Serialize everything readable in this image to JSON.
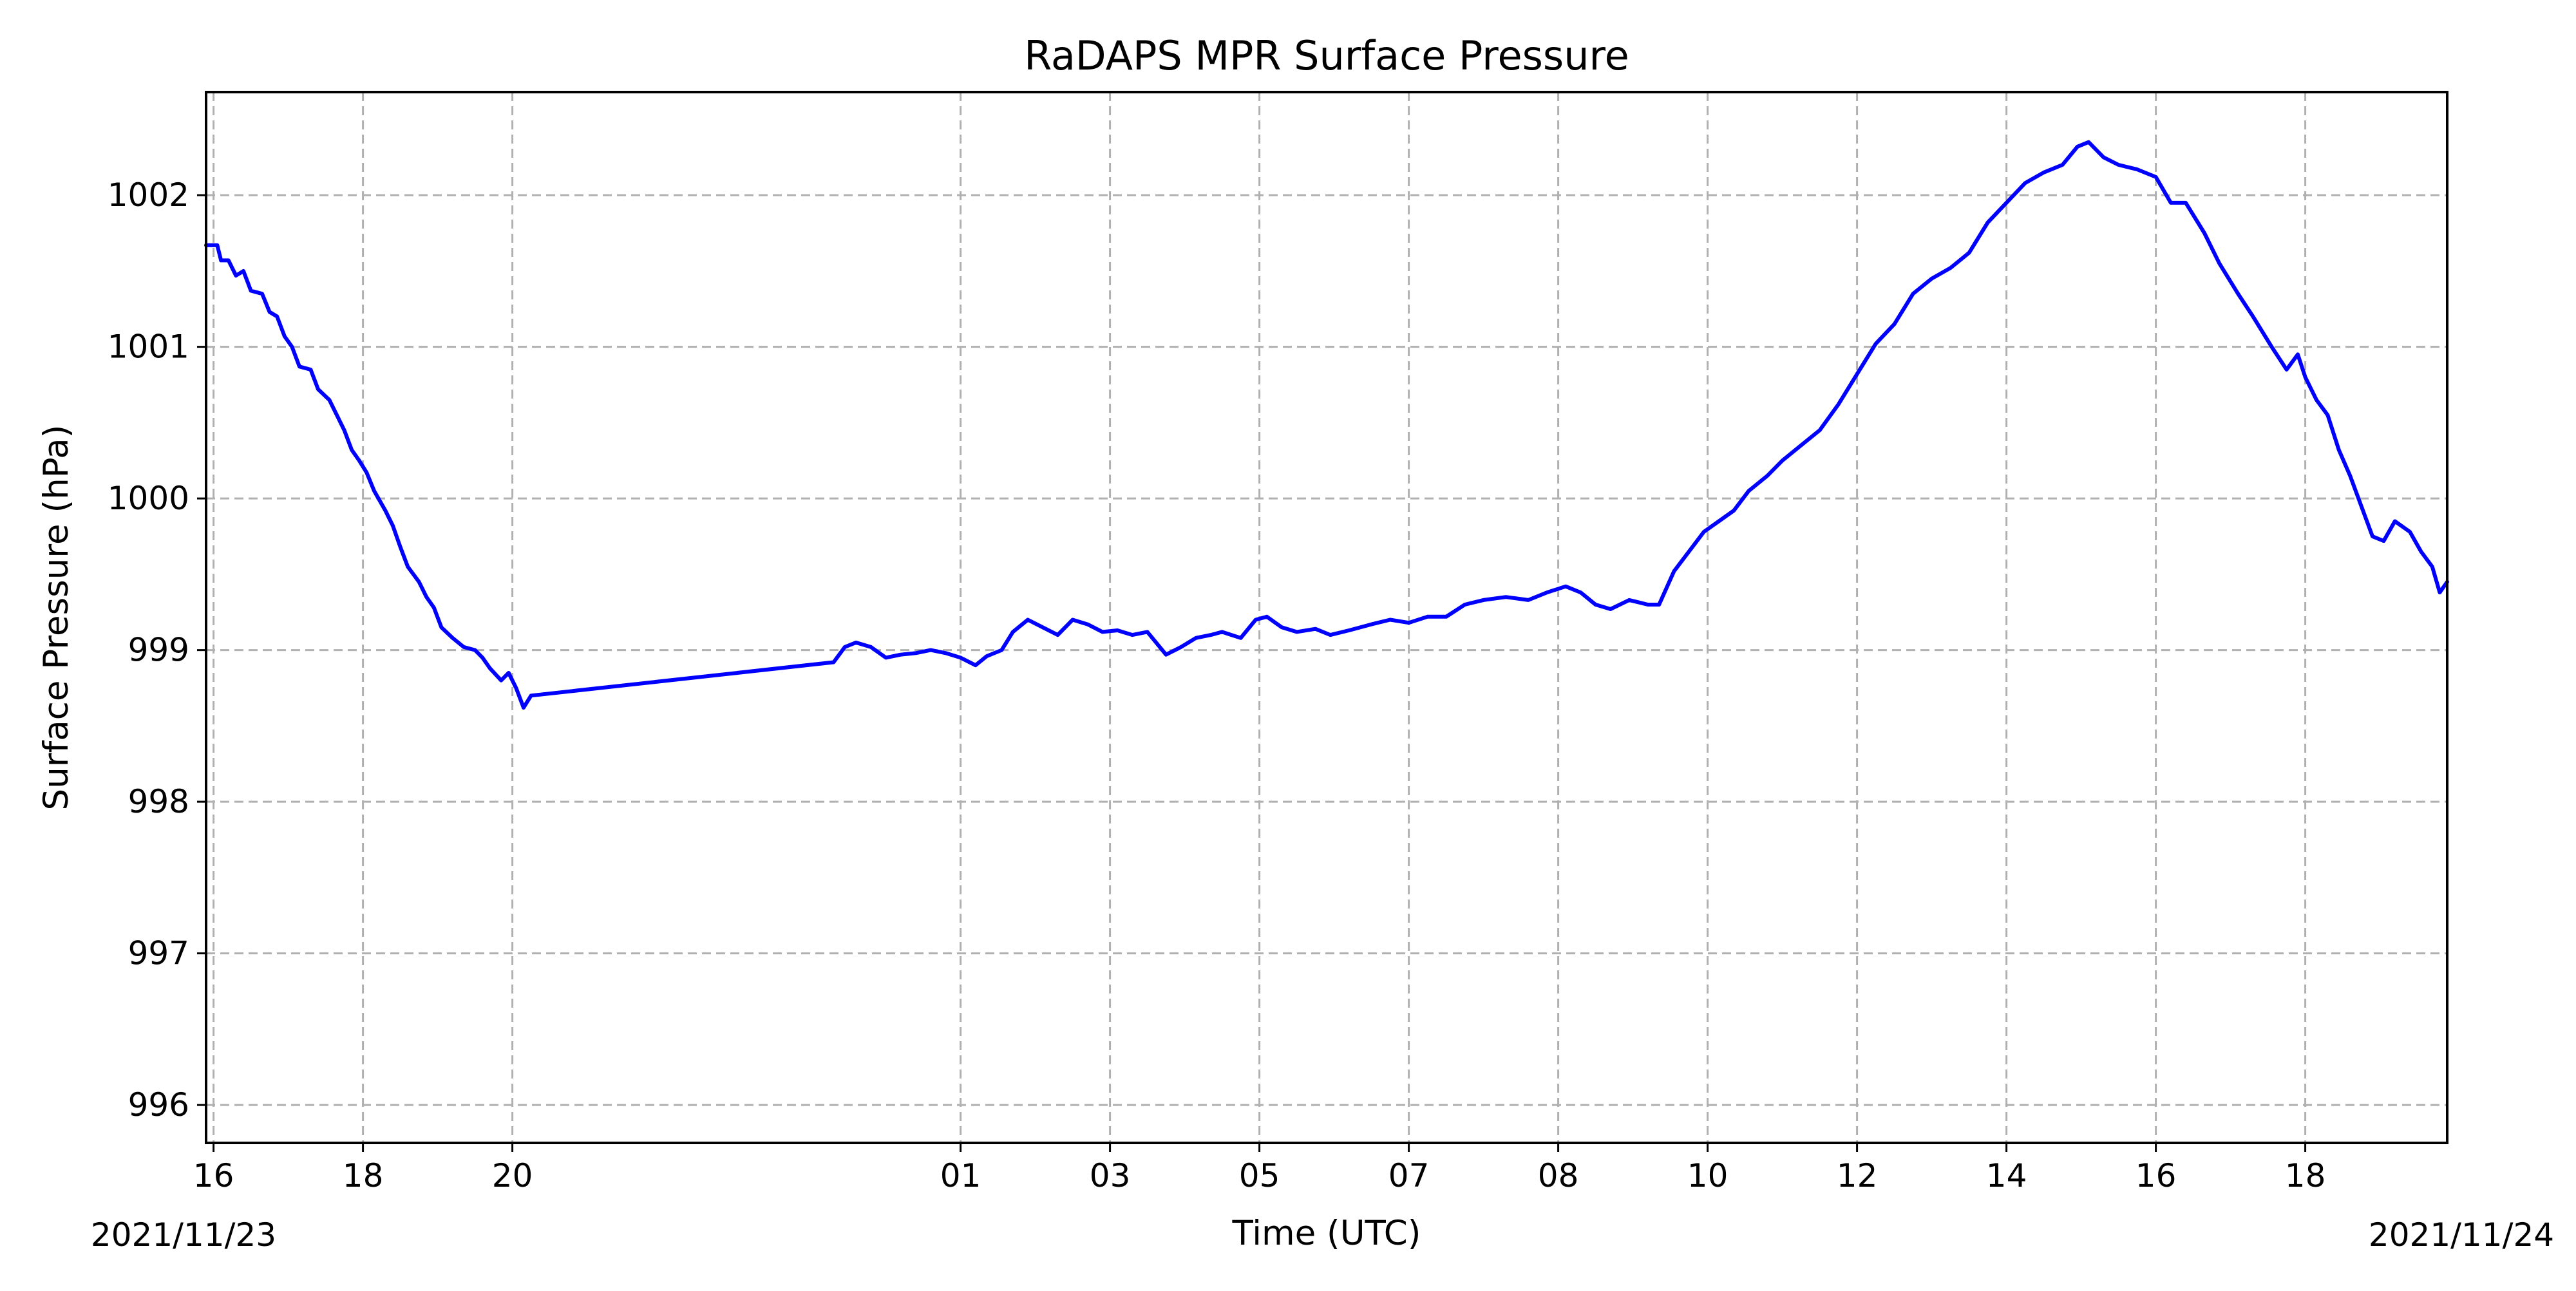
{
  "chart_data": {
    "type": "line",
    "title": "RaDAPS MPR Surface Pressure",
    "xlabel": "Time (UTC)",
    "ylabel": "Surface Pressure (hPa)",
    "ylim": [
      995.75,
      1002.68
    ],
    "xlim_hours": [
      -0.1,
      29.9
    ],
    "grid": true,
    "legend": "none",
    "colors": {
      "line": "#0000ff",
      "grid": "#b0b0b0",
      "axes": "#000000"
    },
    "y_ticks": [
      {
        "value": 996,
        "label": "996"
      },
      {
        "value": 997,
        "label": "997"
      },
      {
        "value": 998,
        "label": "998"
      },
      {
        "value": 999,
        "label": "999"
      },
      {
        "value": 1000,
        "label": "1000"
      },
      {
        "value": 1001,
        "label": "1001"
      },
      {
        "value": 1002,
        "label": "1002"
      }
    ],
    "x_ticks": [
      {
        "hours": 0.0,
        "label": "16"
      },
      {
        "hours": 2.0,
        "label": "18"
      },
      {
        "hours": 4.0,
        "label": "20"
      },
      {
        "hours": 10.0,
        "label": "01"
      },
      {
        "hours": 12.0,
        "label": "03"
      },
      {
        "hours": 14.0,
        "label": "05"
      },
      {
        "hours": 16.0,
        "label": "07"
      },
      {
        "hours": 18.0,
        "label": "08"
      },
      {
        "hours": 20.0,
        "label": "10"
      },
      {
        "hours": 22.0,
        "label": "12"
      },
      {
        "hours": 24.0,
        "label": "14"
      },
      {
        "hours": 26.0,
        "label": "16"
      },
      {
        "hours": 28.0,
        "label": "18"
      }
    ],
    "date_labels": {
      "start": "2021/11/23",
      "end": "2021/11/24"
    },
    "series": [
      {
        "points": [
          [
            -0.1,
            1001.67
          ],
          [
            0.05,
            1001.67
          ],
          [
            0.1,
            1001.57
          ],
          [
            0.2,
            1001.57
          ],
          [
            0.3,
            1001.47
          ],
          [
            0.4,
            1001.5
          ],
          [
            0.5,
            1001.37
          ],
          [
            0.65,
            1001.35
          ],
          [
            0.75,
            1001.23
          ],
          [
            0.85,
            1001.2
          ],
          [
            0.95,
            1001.07
          ],
          [
            1.05,
            1001.0
          ],
          [
            1.15,
            1000.87
          ],
          [
            1.3,
            1000.85
          ],
          [
            1.4,
            1000.72
          ],
          [
            1.55,
            1000.65
          ],
          [
            1.65,
            1000.55
          ],
          [
            1.75,
            1000.45
          ],
          [
            1.85,
            1000.32
          ],
          [
            1.95,
            1000.25
          ],
          [
            2.05,
            1000.17
          ],
          [
            2.15,
            1000.05
          ],
          [
            2.3,
            999.92
          ],
          [
            2.4,
            999.82
          ],
          [
            2.5,
            999.68
          ],
          [
            2.6,
            999.55
          ],
          [
            2.75,
            999.45
          ],
          [
            2.85,
            999.35
          ],
          [
            2.95,
            999.28
          ],
          [
            3.05,
            999.15
          ],
          [
            3.2,
            999.08
          ],
          [
            3.35,
            999.02
          ],
          [
            3.5,
            999.0
          ],
          [
            3.6,
            998.95
          ],
          [
            3.7,
            998.88
          ],
          [
            3.85,
            998.8
          ],
          [
            3.95,
            998.85
          ],
          [
            4.05,
            998.75
          ],
          [
            4.15,
            998.62
          ],
          [
            4.25,
            998.7
          ],
          [
            8.3,
            998.92
          ],
          [
            8.45,
            999.02
          ],
          [
            8.6,
            999.05
          ],
          [
            8.8,
            999.02
          ],
          [
            9.0,
            998.95
          ],
          [
            9.2,
            998.97
          ],
          [
            9.4,
            998.98
          ],
          [
            9.6,
            999.0
          ],
          [
            9.8,
            998.98
          ],
          [
            10.0,
            998.95
          ],
          [
            10.2,
            998.9
          ],
          [
            10.35,
            998.96
          ],
          [
            10.55,
            999.0
          ],
          [
            10.7,
            999.12
          ],
          [
            10.9,
            999.2
          ],
          [
            11.1,
            999.15
          ],
          [
            11.3,
            999.1
          ],
          [
            11.5,
            999.2
          ],
          [
            11.7,
            999.17
          ],
          [
            11.9,
            999.12
          ],
          [
            12.1,
            999.13
          ],
          [
            12.3,
            999.1
          ],
          [
            12.5,
            999.12
          ],
          [
            12.75,
            998.97
          ],
          [
            12.95,
            999.02
          ],
          [
            13.15,
            999.08
          ],
          [
            13.35,
            999.1
          ],
          [
            13.5,
            999.12
          ],
          [
            13.75,
            999.08
          ],
          [
            13.95,
            999.2
          ],
          [
            14.1,
            999.22
          ],
          [
            14.3,
            999.15
          ],
          [
            14.5,
            999.12
          ],
          [
            14.75,
            999.14
          ],
          [
            14.95,
            999.1
          ],
          [
            15.2,
            999.13
          ],
          [
            15.5,
            999.17
          ],
          [
            15.75,
            999.2
          ],
          [
            16.0,
            999.18
          ],
          [
            16.25,
            999.22
          ],
          [
            16.5,
            999.22
          ],
          [
            16.75,
            999.3
          ],
          [
            17.0,
            999.33
          ],
          [
            17.3,
            999.35
          ],
          [
            17.6,
            999.33
          ],
          [
            17.85,
            999.38
          ],
          [
            18.1,
            999.42
          ],
          [
            18.3,
            999.38
          ],
          [
            18.5,
            999.3
          ],
          [
            18.7,
            999.27
          ],
          [
            18.95,
            999.33
          ],
          [
            19.2,
            999.3
          ],
          [
            19.35,
            999.3
          ],
          [
            19.55,
            999.52
          ],
          [
            19.75,
            999.65
          ],
          [
            19.95,
            999.78
          ],
          [
            20.15,
            999.85
          ],
          [
            20.35,
            999.92
          ],
          [
            20.55,
            1000.05
          ],
          [
            20.8,
            1000.15
          ],
          [
            21.0,
            1000.25
          ],
          [
            21.25,
            1000.35
          ],
          [
            21.5,
            1000.45
          ],
          [
            21.75,
            1000.62
          ],
          [
            22.0,
            1000.82
          ],
          [
            22.25,
            1001.02
          ],
          [
            22.5,
            1001.15
          ],
          [
            22.75,
            1001.35
          ],
          [
            23.0,
            1001.45
          ],
          [
            23.25,
            1001.52
          ],
          [
            23.5,
            1001.62
          ],
          [
            23.75,
            1001.82
          ],
          [
            24.0,
            1001.95
          ],
          [
            24.25,
            1002.08
          ],
          [
            24.5,
            1002.15
          ],
          [
            24.75,
            1002.2
          ],
          [
            24.95,
            1002.32
          ],
          [
            25.1,
            1002.35
          ],
          [
            25.3,
            1002.25
          ],
          [
            25.5,
            1002.2
          ],
          [
            25.75,
            1002.17
          ],
          [
            26.0,
            1002.12
          ],
          [
            26.2,
            1001.95
          ],
          [
            26.4,
            1001.95
          ],
          [
            26.65,
            1001.75
          ],
          [
            26.85,
            1001.55
          ],
          [
            27.1,
            1001.35
          ],
          [
            27.3,
            1001.2
          ],
          [
            27.55,
            1001.0
          ],
          [
            27.75,
            1000.85
          ],
          [
            27.9,
            1000.95
          ],
          [
            28.0,
            1000.8
          ],
          [
            28.15,
            1000.65
          ],
          [
            28.3,
            1000.55
          ],
          [
            28.45,
            1000.32
          ],
          [
            28.6,
            1000.15
          ],
          [
            28.75,
            999.95
          ],
          [
            28.9,
            999.75
          ],
          [
            29.05,
            999.72
          ],
          [
            29.2,
            999.85
          ],
          [
            29.4,
            999.78
          ],
          [
            29.55,
            999.65
          ],
          [
            29.7,
            999.55
          ],
          [
            29.8,
            999.38
          ],
          [
            29.9,
            999.45
          ]
        ]
      }
    ]
  }
}
